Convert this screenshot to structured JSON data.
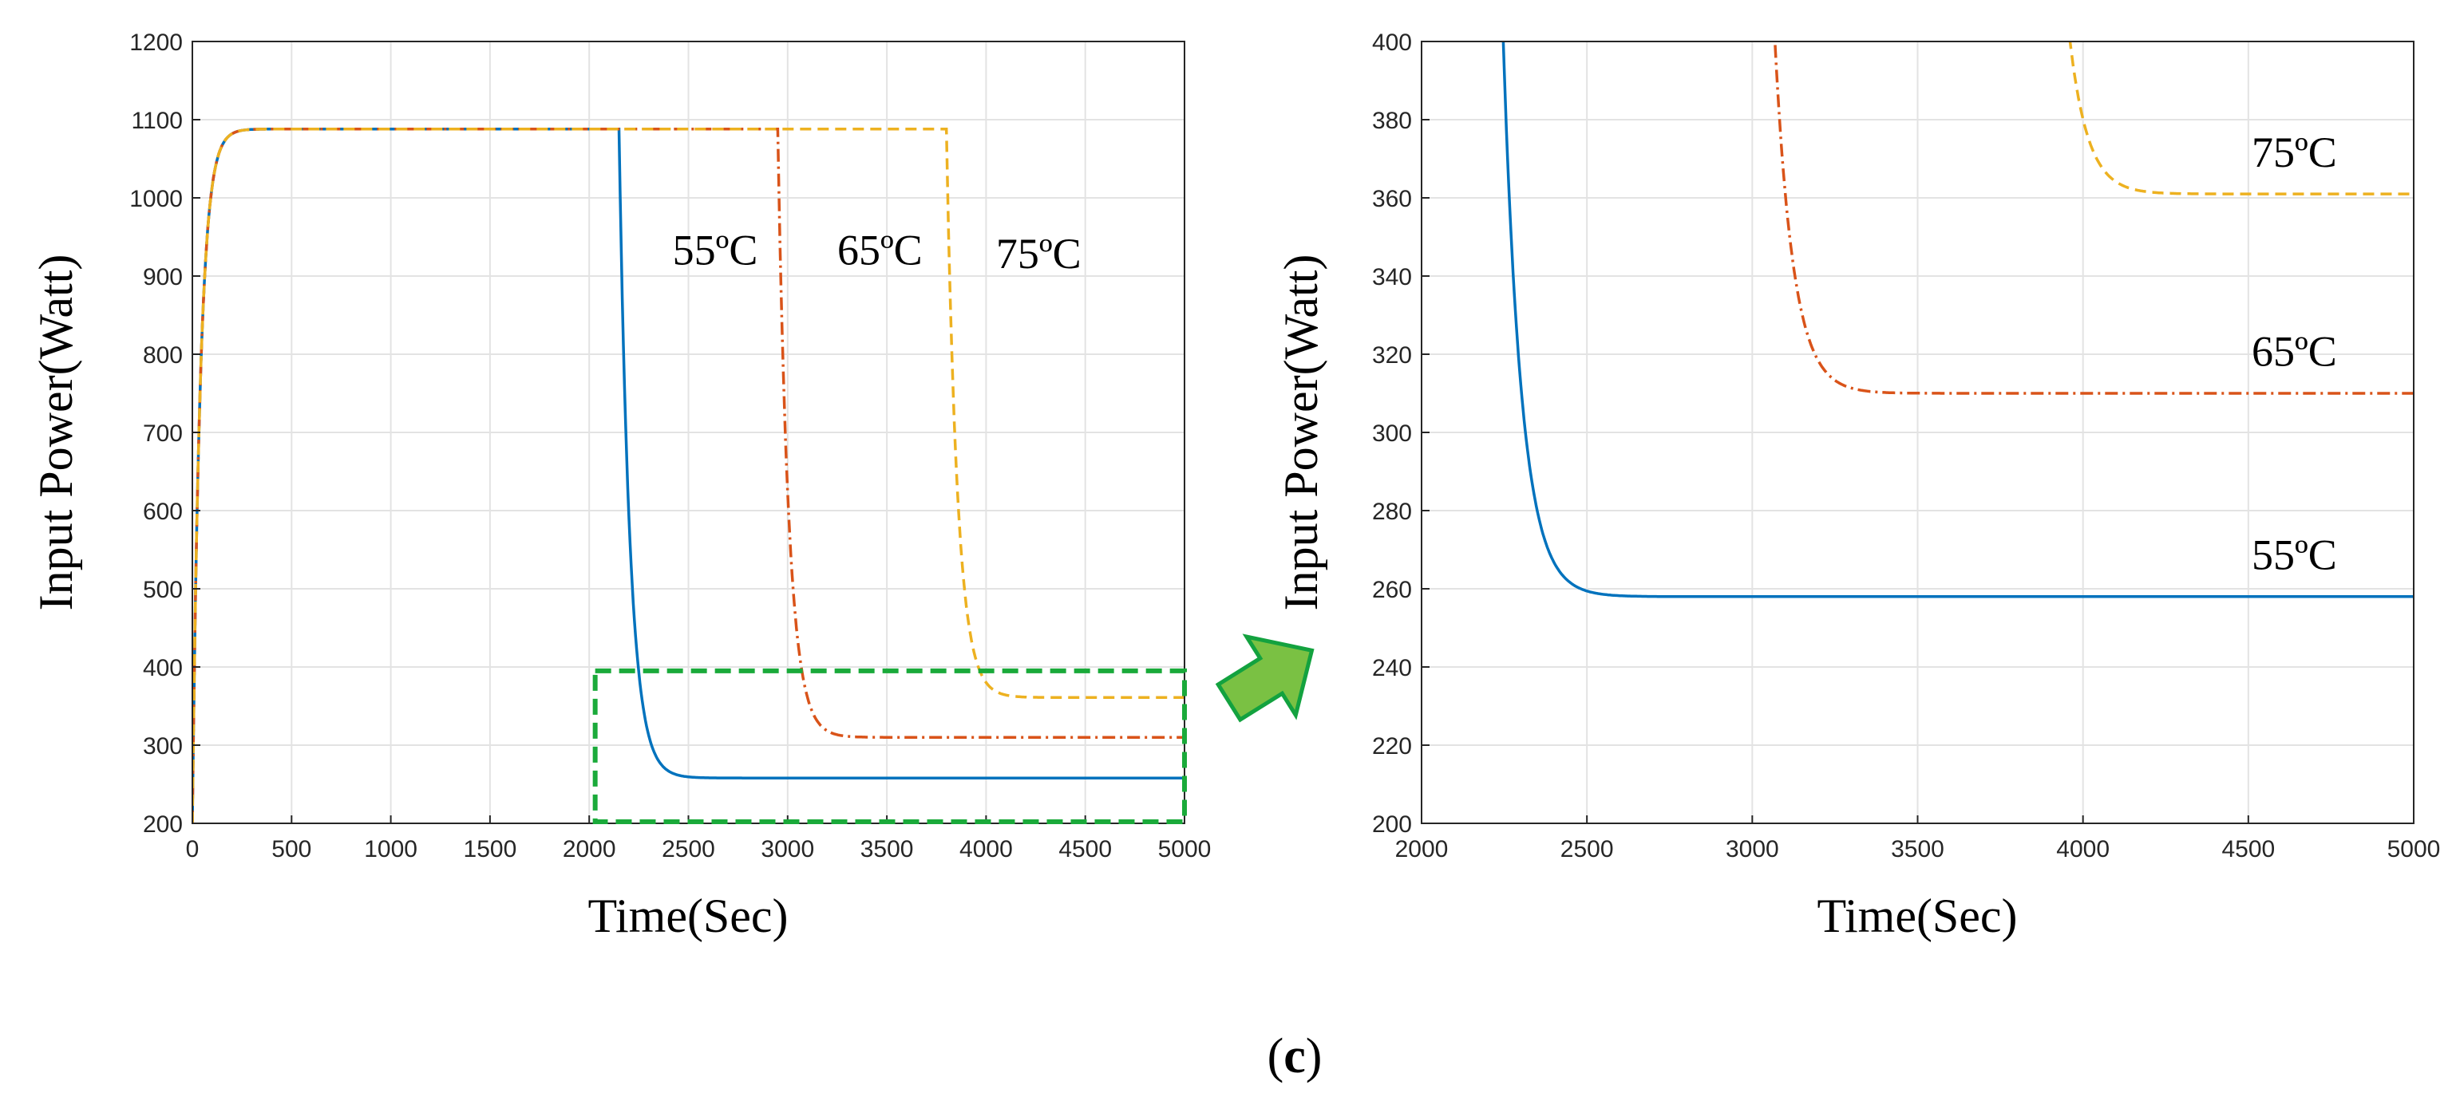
{
  "caption": {
    "open": "(",
    "letter": "c",
    "close": ")"
  },
  "colors": {
    "s55": "#0072BD",
    "s65": "#D95319",
    "s75": "#EDB120",
    "grid": "#e3e3e3",
    "highlight": "#1aaa3a",
    "arrow_fill": "#7ac143",
    "arrow_stroke": "#13a23f"
  },
  "chart_data": [
    {
      "type": "line",
      "name": "full",
      "xlabel": "Time(Sec)",
      "ylabel": "Input Power(Watt)",
      "xlim": [
        0,
        5000
      ],
      "ylim": [
        200,
        1200
      ],
      "xticks": [
        0,
        500,
        1000,
        1500,
        2000,
        2500,
        3000,
        3500,
        4000,
        4500,
        5000
      ],
      "yticks": [
        200,
        300,
        400,
        500,
        600,
        700,
        800,
        900,
        1000,
        1100,
        1200
      ],
      "grid": true,
      "highlight_box": {
        "x": [
          2030,
          5000
        ],
        "y": [
          202,
          395
        ]
      },
      "series": [
        {
          "name": "55ºC",
          "key": "s55",
          "dash": "solid",
          "ramp_end": 1088,
          "drop_start": 2150,
          "drop_tau": 55,
          "final": 258
        },
        {
          "name": "65ºC",
          "key": "s65",
          "dash": "dashdot",
          "ramp_end": 1088,
          "drop_start": 2950,
          "drop_tau": 55,
          "final": 310
        },
        {
          "name": "75ºC",
          "key": "s75",
          "dash": "dashed",
          "ramp_end": 1088,
          "drop_start": 3800,
          "drop_tau": 55,
          "final": 361
        }
      ],
      "labels": [
        {
          "text": "55ºC",
          "x": 2420,
          "y": 915
        },
        {
          "text": "65ºC",
          "x": 3250,
          "y": 915
        },
        {
          "text": "75ºC",
          "x": 4050,
          "y": 910
        }
      ]
    },
    {
      "type": "line",
      "name": "zoom",
      "xlabel": "Time(Sec)",
      "ylabel": "Input Power(Watt)",
      "xlim": [
        2000,
        5000
      ],
      "ylim": [
        200,
        400
      ],
      "xticks": [
        2000,
        2500,
        3000,
        3500,
        4000,
        4500,
        5000
      ],
      "yticks": [
        200,
        220,
        240,
        260,
        280,
        300,
        320,
        340,
        360,
        380,
        400
      ],
      "grid": true,
      "series": [
        {
          "name": "55ºC",
          "key": "s55",
          "dash": "solid",
          "ramp_end": 1088,
          "drop_start": 2150,
          "drop_tau": 55,
          "final": 258
        },
        {
          "name": "65ºC",
          "key": "s65",
          "dash": "dashdot",
          "ramp_end": 1088,
          "drop_start": 2950,
          "drop_tau": 55,
          "final": 310
        },
        {
          "name": "75ºC",
          "key": "s75",
          "dash": "dashed",
          "ramp_end": 1088,
          "drop_start": 3800,
          "drop_tau": 55,
          "final": 361
        }
      ],
      "labels": [
        {
          "text": "75ºC",
          "x": 4510,
          "y": 368
        },
        {
          "text": "65ºC",
          "x": 4510,
          "y": 317
        },
        {
          "text": "55ºC",
          "x": 4510,
          "y": 265
        }
      ]
    }
  ]
}
